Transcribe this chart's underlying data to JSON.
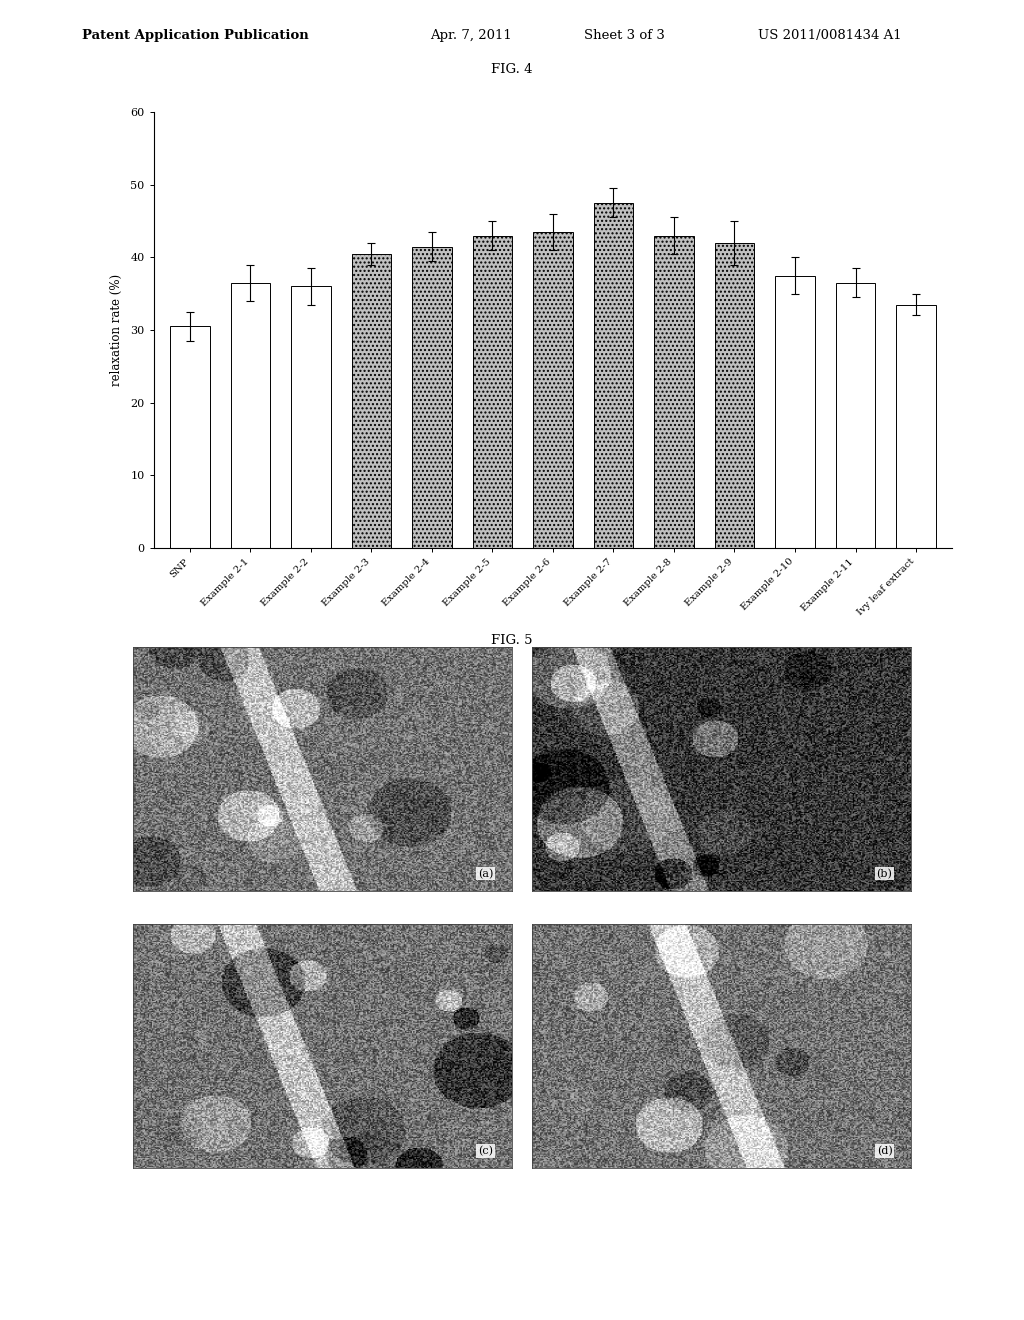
{
  "fig4_title": "FIG. 4",
  "fig5_title": "FIG. 5",
  "header_text": "Patent Application Publication",
  "header_date": "Apr. 7, 2011",
  "header_sheet": "Sheet 3 of 3",
  "header_patent": "US 2011/0081434 A1",
  "bar_labels": [
    "SNP",
    "Example 2-1",
    "Example 2-2",
    "Example 2-3",
    "Example 2-4",
    "Example 2-5",
    "Example 2-6",
    "Example 2-7",
    "Example 2-8",
    "Example 2-9",
    "Example 2-10",
    "Example 2-11",
    "Ivy leaf extract"
  ],
  "bar_values": [
    30.5,
    36.5,
    36.0,
    40.5,
    41.5,
    43.0,
    43.5,
    47.5,
    43.0,
    42.0,
    37.5,
    36.5,
    33.5
  ],
  "bar_errors": [
    2.0,
    2.5,
    2.5,
    1.5,
    2.0,
    2.0,
    2.5,
    2.0,
    2.5,
    3.0,
    2.5,
    2.0,
    1.5
  ],
  "open_indices": [
    0,
    1,
    2,
    10,
    11,
    12
  ],
  "hatched_indices": [
    3,
    4,
    5,
    6,
    7,
    8,
    9
  ],
  "ylabel": "relaxation rate (%)",
  "ylim": [
    0,
    60
  ],
  "yticks": [
    0,
    10,
    20,
    30,
    40,
    50,
    60
  ],
  "background_color": "#ffffff",
  "bar_edge_color": "#000000",
  "open_bar_facecolor": "#ffffff",
  "hatched_bar_facecolor": "#c0c0c0",
  "panel_labels": [
    "(a)",
    "(b)",
    "(c)",
    "(d)"
  ],
  "panel_seeds": [
    42,
    7,
    13,
    99
  ],
  "panel_dark": [
    false,
    true,
    false,
    false
  ]
}
